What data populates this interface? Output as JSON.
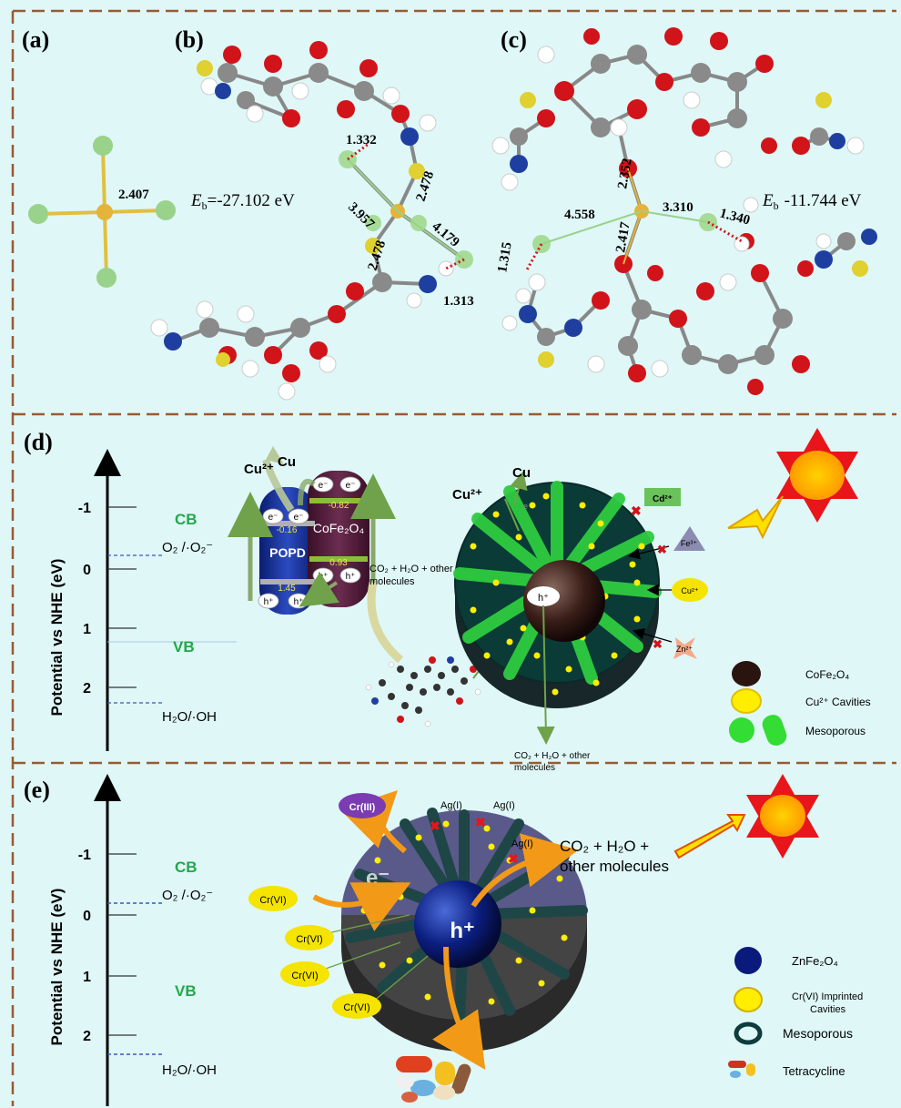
{
  "panel_labels": {
    "a": "(a)",
    "b": "(b)",
    "c": "(c)",
    "d": "(d)",
    "e": "(e)"
  },
  "panel_a": {
    "bond": "2.407"
  },
  "panel_b": {
    "energy_label": "E",
    "energy_sub": "b",
    "energy_value": "=-27.102 eV",
    "distances": [
      "1.332",
      "3.957",
      "2.478",
      "2.478",
      "4.179",
      "1.313"
    ]
  },
  "panel_c": {
    "energy_label": "E",
    "energy_sub": "b",
    "energy_value": "-11.744 eV",
    "distances": [
      "2.352",
      "4.558",
      "3.310",
      "1.340",
      "1.315",
      "2.417"
    ]
  },
  "panel_d": {
    "axis_label": "Potential vs NHE (eV)",
    "ticks": [
      "-1",
      "0",
      "1",
      "2"
    ],
    "cb": "CB",
    "vb": "VB",
    "o2": "O₂ /·O₂⁻",
    "h2o": "H₂O/·OH",
    "popd": "POPD",
    "cofe": "CoFe₂O₄",
    "e": "e⁻",
    "h": "h⁺",
    "e_small": "e",
    "popd_cb": "-0.16",
    "popd_vb": "1.45",
    "cofe_cb": "-0.82",
    "cofe_vb": "0.93",
    "cu2": "Cu²⁺",
    "cu": "Cu",
    "co2_line1": "CO₂ + H₂O + other",
    "co2_line2": "molecules",
    "cd": "Cd²⁺",
    "fe": "Fe³⁺",
    "cu_ion": "Cu²⁺",
    "zn": "Zn²⁺",
    "bottom_line1": "CO₂ + H₂O + other",
    "bottom_line2": "molecules",
    "legend": [
      {
        "label": "CoFe₂O₄",
        "color": "#2a1410"
      },
      {
        "label": "Cu²⁺ Cavities",
        "color": "#ffee00"
      },
      {
        "label": "Mesoporous",
        "color": "#33dd33"
      }
    ]
  },
  "panel_e": {
    "axis_label": "Potential vs NHE (eV)",
    "ticks": [
      "-1",
      "0",
      "1",
      "2"
    ],
    "cb": "CB",
    "vb": "VB",
    "o2": "O₂ /·O₂⁻",
    "h2o": "H₂O/·OH",
    "cr3": "Cr(III)",
    "cr6": [
      "Cr(VI)",
      "Cr(VI)",
      "Cr(VI)",
      "Cr(VI)"
    ],
    "ag": [
      "Ag(I)",
      "Ag(I)",
      "Ag(I)"
    ],
    "e": "e⁻",
    "h": "h⁺",
    "product_line1": "CO₂ + H₂O +",
    "product_line2": "other molecules",
    "legend": [
      {
        "label": "ZnFe₂O₄",
        "color": "#0a1a7a"
      },
      {
        "label": "Cr(VI) Imprinted",
        "label2": "Cavities",
        "color": "#ffee00"
      },
      {
        "label": "Mesoporous",
        "color": "#0e3b3b"
      },
      {
        "label": "Tetracycline",
        "color": "#cc3322"
      }
    ]
  }
}
